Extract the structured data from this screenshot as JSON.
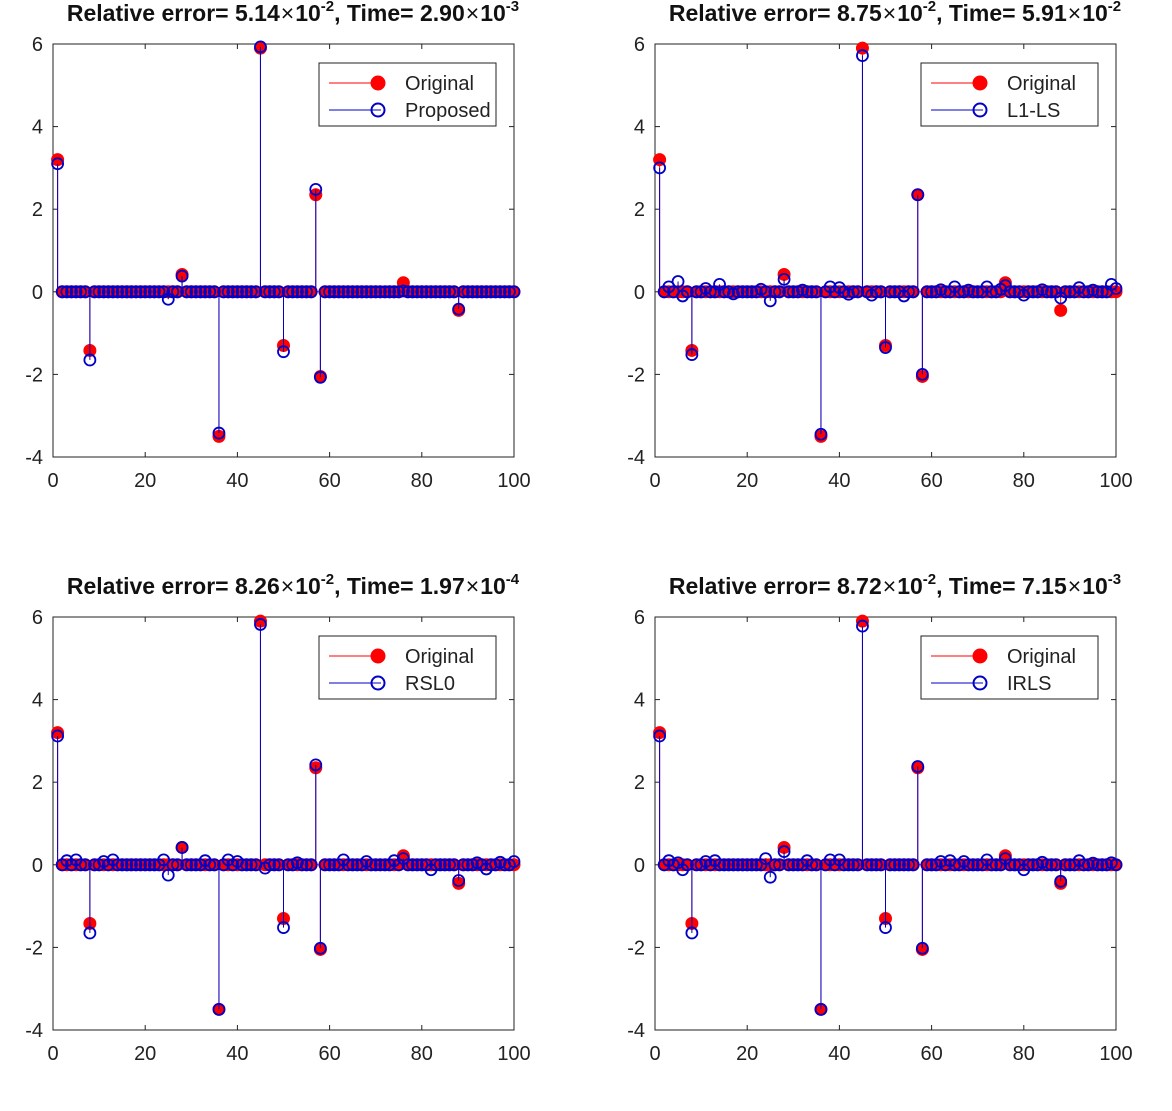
{
  "chart_data": [
    {
      "type": "stem",
      "title": {
        "prefix": "Relative error= ",
        "err_mant": "5.14",
        "err_exp": "-2",
        "mid": ", Time= ",
        "time_mant": "2.90",
        "time_exp": "-3",
        "times_sign": "×",
        "base": "10"
      },
      "xlim": [
        0,
        100
      ],
      "ylim": [
        -4,
        6
      ],
      "xticks": [
        "0",
        "20",
        "40",
        "60",
        "80",
        "100"
      ],
      "yticks": [
        "-4",
        "-2",
        "0",
        "2",
        "4",
        "6"
      ],
      "legend": [
        "Original",
        "Proposed"
      ],
      "legend_position": "top-right",
      "original": [
        [
          1,
          3.2
        ],
        [
          8,
          -1.42
        ],
        [
          28,
          0.42
        ],
        [
          36,
          -3.5
        ],
        [
          45,
          5.9
        ],
        [
          50,
          -1.3
        ],
        [
          57,
          2.35
        ],
        [
          58,
          -2.05
        ],
        [
          76,
          0.22
        ],
        [
          88,
          -0.45
        ]
      ],
      "recovered": [
        [
          1,
          3.1
        ],
        [
          8,
          -1.65
        ],
        [
          25,
          -0.18
        ],
        [
          28,
          0.38
        ],
        [
          36,
          -3.42
        ],
        [
          45,
          5.93
        ],
        [
          50,
          -1.45
        ],
        [
          57,
          2.48
        ],
        [
          58,
          -2.07
        ],
        [
          76,
          0.02
        ],
        [
          88,
          -0.42
        ]
      ],
      "recovered_noise": []
    },
    {
      "type": "stem",
      "title": {
        "prefix": "Relative error= ",
        "err_mant": "8.75",
        "err_exp": "-2",
        "mid": ", Time= ",
        "time_mant": "5.91",
        "time_exp": "-2",
        "times_sign": "×",
        "base": "10"
      },
      "xlim": [
        0,
        100
      ],
      "ylim": [
        -4,
        6
      ],
      "xticks": [
        "0",
        "20",
        "40",
        "60",
        "80",
        "100"
      ],
      "yticks": [
        "-4",
        "-2",
        "0",
        "2",
        "4",
        "6"
      ],
      "legend": [
        "Original",
        "L1-LS"
      ],
      "legend_position": "top-right",
      "original": [
        [
          1,
          3.2
        ],
        [
          8,
          -1.42
        ],
        [
          28,
          0.42
        ],
        [
          36,
          -3.5
        ],
        [
          45,
          5.9
        ],
        [
          50,
          -1.3
        ],
        [
          57,
          2.35
        ],
        [
          58,
          -2.05
        ],
        [
          76,
          0.22
        ],
        [
          88,
          -0.45
        ]
      ],
      "recovered": [
        [
          1,
          3.0
        ],
        [
          8,
          -1.52
        ],
        [
          25,
          -0.22
        ],
        [
          28,
          0.3
        ],
        [
          36,
          -3.45
        ],
        [
          45,
          5.72
        ],
        [
          50,
          -1.35
        ],
        [
          57,
          2.35
        ],
        [
          58,
          -2.0
        ],
        [
          76,
          0.15
        ],
        [
          88,
          -0.15
        ]
      ],
      "recovered_noise": [
        [
          3,
          0.12
        ],
        [
          5,
          0.25
        ],
        [
          6,
          -0.1
        ],
        [
          11,
          0.08
        ],
        [
          14,
          0.18
        ],
        [
          17,
          -0.05
        ],
        [
          23,
          0.06
        ],
        [
          32,
          0.04
        ],
        [
          38,
          0.12
        ],
        [
          40,
          0.1
        ],
        [
          42,
          -0.06
        ],
        [
          47,
          -0.08
        ],
        [
          54,
          -0.1
        ],
        [
          62,
          0.05
        ],
        [
          65,
          0.12
        ],
        [
          68,
          0.04
        ],
        [
          72,
          0.12
        ],
        [
          75,
          0.06
        ],
        [
          80,
          -0.08
        ],
        [
          84,
          0.05
        ],
        [
          92,
          0.1
        ],
        [
          95,
          0.04
        ],
        [
          99,
          0.18
        ],
        [
          100,
          0.08
        ]
      ]
    },
    {
      "type": "stem",
      "title": {
        "prefix": "Relative error= ",
        "err_mant": "8.26",
        "err_exp": "-2",
        "mid": ", Time= ",
        "time_mant": "1.97",
        "time_exp": "-4",
        "times_sign": "×",
        "base": "10"
      },
      "xlim": [
        0,
        100
      ],
      "ylim": [
        -4,
        6
      ],
      "xticks": [
        "0",
        "20",
        "40",
        "60",
        "80",
        "100"
      ],
      "yticks": [
        "-4",
        "-2",
        "0",
        "2",
        "4",
        "6"
      ],
      "legend": [
        "Original",
        "RSL0"
      ],
      "legend_position": "top-right",
      "original": [
        [
          1,
          3.2
        ],
        [
          8,
          -1.42
        ],
        [
          28,
          0.42
        ],
        [
          36,
          -3.5
        ],
        [
          45,
          5.9
        ],
        [
          50,
          -1.3
        ],
        [
          57,
          2.35
        ],
        [
          58,
          -2.05
        ],
        [
          76,
          0.22
        ],
        [
          88,
          -0.45
        ]
      ],
      "recovered": [
        [
          1,
          3.12
        ],
        [
          8,
          -1.65
        ],
        [
          25,
          -0.25
        ],
        [
          28,
          0.42
        ],
        [
          36,
          -3.5
        ],
        [
          45,
          5.82
        ],
        [
          50,
          -1.52
        ],
        [
          57,
          2.42
        ],
        [
          58,
          -2.02
        ],
        [
          76,
          0.15
        ],
        [
          88,
          -0.38
        ]
      ],
      "recovered_noise": [
        [
          3,
          0.1
        ],
        [
          5,
          0.12
        ],
        [
          11,
          0.08
        ],
        [
          13,
          0.12
        ],
        [
          24,
          0.12
        ],
        [
          33,
          0.1
        ],
        [
          38,
          0.12
        ],
        [
          40,
          0.08
        ],
        [
          46,
          -0.08
        ],
        [
          53,
          0.05
        ],
        [
          63,
          0.12
        ],
        [
          68,
          0.08
        ],
        [
          74,
          0.1
        ],
        [
          82,
          -0.12
        ],
        [
          92,
          0.05
        ],
        [
          94,
          -0.1
        ],
        [
          97,
          0.06
        ],
        [
          100,
          0.08
        ]
      ]
    },
    {
      "type": "stem",
      "title": {
        "prefix": "Relative error= ",
        "err_mant": "8.72",
        "err_exp": "-2",
        "mid": ", Time= ",
        "time_mant": "7.15",
        "time_exp": "-3",
        "times_sign": "×",
        "base": "10"
      },
      "xlim": [
        0,
        100
      ],
      "ylim": [
        -4,
        6
      ],
      "xticks": [
        "0",
        "20",
        "40",
        "60",
        "80",
        "100"
      ],
      "yticks": [
        "-4",
        "-2",
        "0",
        "2",
        "4",
        "6"
      ],
      "legend": [
        "Original",
        "IRLS"
      ],
      "legend_position": "top-right",
      "original": [
        [
          1,
          3.2
        ],
        [
          8,
          -1.42
        ],
        [
          28,
          0.42
        ],
        [
          36,
          -3.5
        ],
        [
          45,
          5.9
        ],
        [
          50,
          -1.3
        ],
        [
          57,
          2.35
        ],
        [
          58,
          -2.05
        ],
        [
          76,
          0.22
        ],
        [
          88,
          -0.45
        ]
      ],
      "recovered": [
        [
          1,
          3.12
        ],
        [
          8,
          -1.65
        ],
        [
          25,
          -0.3
        ],
        [
          28,
          0.32
        ],
        [
          36,
          -3.5
        ],
        [
          45,
          5.78
        ],
        [
          50,
          -1.52
        ],
        [
          57,
          2.38
        ],
        [
          58,
          -2.02
        ],
        [
          76,
          0.15
        ],
        [
          88,
          -0.4
        ]
      ],
      "recovered_noise": [
        [
          3,
          0.1
        ],
        [
          5,
          0.05
        ],
        [
          6,
          -0.12
        ],
        [
          11,
          0.08
        ],
        [
          13,
          0.1
        ],
        [
          24,
          0.15
        ],
        [
          33,
          0.1
        ],
        [
          38,
          0.12
        ],
        [
          40,
          0.12
        ],
        [
          62,
          0.08
        ],
        [
          64,
          0.1
        ],
        [
          67,
          0.08
        ],
        [
          72,
          0.12
        ],
        [
          80,
          -0.12
        ],
        [
          84,
          0.06
        ],
        [
          92,
          0.1
        ],
        [
          95,
          0.04
        ],
        [
          99,
          0.05
        ]
      ]
    }
  ],
  "colors": {
    "original": "#ff0000",
    "recovered": "#0000c8",
    "axis": "#222222"
  }
}
